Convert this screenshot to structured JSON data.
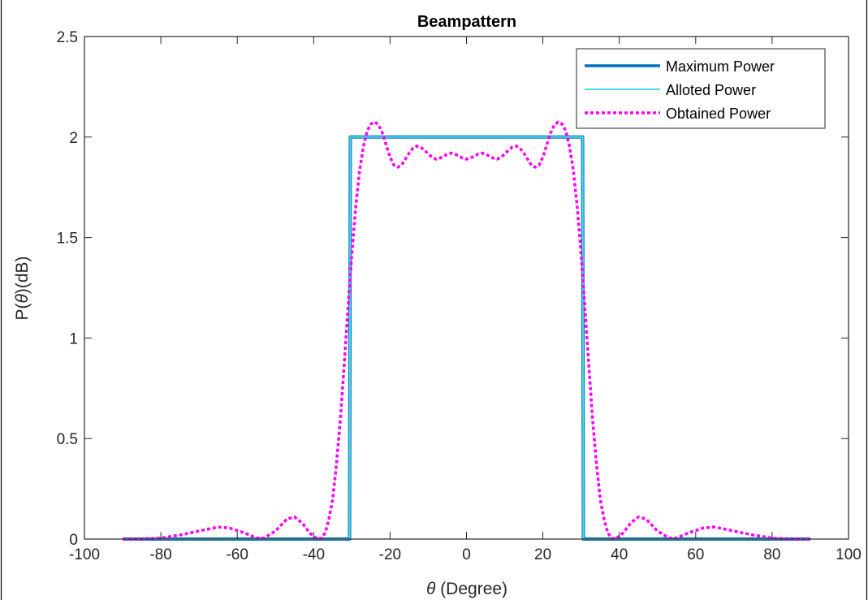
{
  "chart_data": {
    "type": "line",
    "title": "Beampattern",
    "xlabel_symbol": "θ",
    "xlabel_text": " (Degree)",
    "ylabel_prefix": "P(",
    "ylabel_symbol": "θ",
    "ylabel_suffix": ")(dB)",
    "xlim": [
      -100,
      100
    ],
    "ylim": [
      0,
      2.5
    ],
    "x_ticks": [
      -100,
      -80,
      -60,
      -40,
      -20,
      0,
      20,
      40,
      60,
      80,
      100
    ],
    "x_tick_labels": [
      "-100",
      "-80",
      "-60",
      "-40",
      "-20",
      "0",
      "20",
      "40",
      "60",
      "80",
      "100"
    ],
    "y_ticks": [
      0,
      0.5,
      1,
      1.5,
      2,
      2.5
    ],
    "y_tick_labels": [
      "0",
      "0.5",
      "1",
      "1.5",
      "2",
      "2.5"
    ],
    "grid": false,
    "legend_position": "top-right",
    "series": [
      {
        "name": "Maximum Power",
        "color": "#0072bd",
        "style": "solid-thick",
        "x": [
          -90,
          -30.6,
          -30.4,
          30.4,
          30.6,
          90
        ],
        "y": [
          0,
          0,
          2,
          2,
          0,
          0
        ]
      },
      {
        "name": "Alloted Power",
        "color": "#4fd8e8",
        "style": "solid",
        "x": [
          -90,
          -30.6,
          -30.4,
          30.4,
          30.6,
          90
        ],
        "y": [
          0,
          0,
          2,
          2,
          0,
          0
        ]
      },
      {
        "name": "Obtained Power",
        "color": "#ff00ff",
        "style": "dotted",
        "x": [
          -90,
          -85,
          -80,
          -75,
          -70,
          -65,
          -62,
          -58,
          -55,
          -53,
          -50,
          -47,
          -45,
          -43,
          -41,
          -39,
          -38,
          -37,
          -36,
          -35,
          -34,
          -33,
          -32,
          -31,
          -30,
          -29,
          -28,
          -27,
          -26,
          -25,
          -24,
          -23,
          -22,
          -21,
          -20,
          -19,
          -18,
          -17,
          -16,
          -15,
          -14,
          -13,
          -12,
          -11,
          -10,
          -9,
          -8,
          -7,
          -6,
          -5,
          -4,
          -3,
          -2,
          -1,
          0,
          1,
          2,
          3,
          4,
          5,
          6,
          7,
          8,
          9,
          10,
          11,
          12,
          13,
          14,
          15,
          16,
          17,
          18,
          19,
          20,
          21,
          22,
          23,
          24,
          25,
          26,
          27,
          28,
          29,
          30,
          31,
          32,
          33,
          34,
          35,
          36,
          37,
          38,
          39,
          41,
          43,
          45,
          47,
          50,
          53,
          55,
          58,
          62,
          65,
          70,
          75,
          80,
          85,
          90
        ],
        "y": [
          0,
          0,
          0.005,
          0.02,
          0.04,
          0.06,
          0.055,
          0.03,
          0.005,
          0.005,
          0.04,
          0.1,
          0.11,
          0.08,
          0.03,
          0,
          0.005,
          0.03,
          0.1,
          0.2,
          0.38,
          0.6,
          0.87,
          1.15,
          1.42,
          1.65,
          1.83,
          1.95,
          2.03,
          2.065,
          2.075,
          2.06,
          2.02,
          1.96,
          1.9,
          1.86,
          1.85,
          1.86,
          1.89,
          1.92,
          1.945,
          1.955,
          1.95,
          1.935,
          1.915,
          1.9,
          1.89,
          1.895,
          1.905,
          1.915,
          1.92,
          1.915,
          1.905,
          1.895,
          1.89,
          1.895,
          1.905,
          1.915,
          1.92,
          1.915,
          1.905,
          1.895,
          1.89,
          1.9,
          1.915,
          1.935,
          1.95,
          1.955,
          1.945,
          1.92,
          1.89,
          1.86,
          1.85,
          1.86,
          1.9,
          1.96,
          2.02,
          2.06,
          2.075,
          2.065,
          2.03,
          1.95,
          1.83,
          1.65,
          1.42,
          1.15,
          0.87,
          0.6,
          0.38,
          0.2,
          0.1,
          0.03,
          0.005,
          0,
          0.03,
          0.08,
          0.11,
          0.1,
          0.04,
          0.005,
          0.005,
          0.03,
          0.055,
          0.06,
          0.04,
          0.02,
          0.005,
          0,
          0
        ]
      }
    ]
  }
}
